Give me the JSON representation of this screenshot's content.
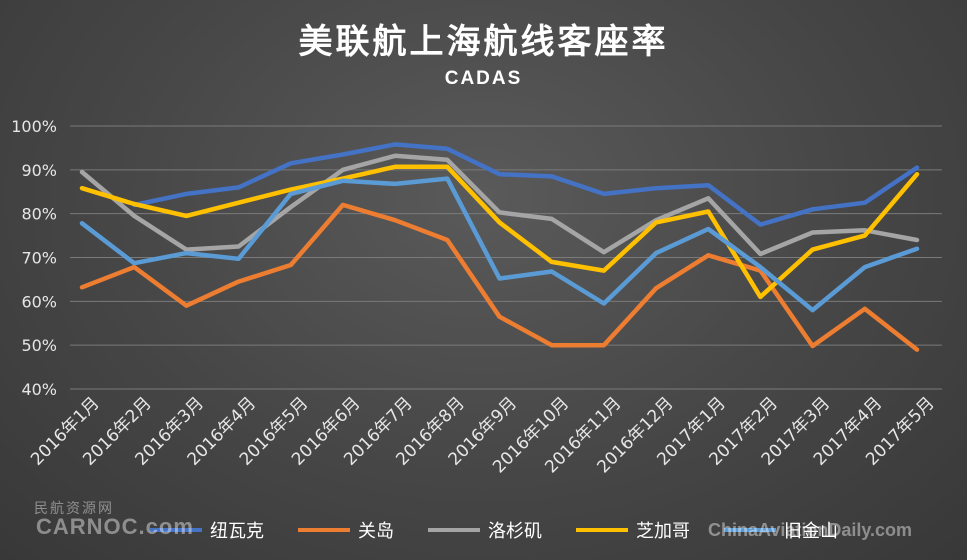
{
  "chart_data": {
    "type": "line",
    "title": "美联航上海航线客座率",
    "subtitle": "CADAS",
    "categories": [
      "2016年1月",
      "2016年2月",
      "2016年3月",
      "2016年4月",
      "2016年5月",
      "2016年6月",
      "2016年7月",
      "2016年8月",
      "2016年9月",
      "2016年10月",
      "2016年11月",
      "2016年12月",
      "2017年1月",
      "2017年2月",
      "2017年3月",
      "2017年4月",
      "2017年5月"
    ],
    "y_ticks": [
      "40%",
      "50%",
      "60%",
      "70%",
      "80%",
      "90%",
      "100%"
    ],
    "ylim": [
      40,
      100
    ],
    "grid": true,
    "legend_position": "bottom",
    "series": [
      {
        "name": "纽瓦克",
        "color": "#4472C4",
        "values": [
          null,
          82,
          84.5,
          86,
          91.5,
          93.5,
          95.8,
          94.8,
          89,
          88.5,
          84.5,
          85.8,
          86.5,
          77.5,
          81,
          82.5,
          90.5
        ]
      },
      {
        "name": "关岛",
        "color": "#ED7D31",
        "values": [
          63.2,
          67.8,
          59,
          64.5,
          68.3,
          82,
          78.5,
          74,
          56.5,
          50,
          50,
          63,
          70.5,
          67,
          49.8,
          58.3,
          49
        ]
      },
      {
        "name": "洛杉矶",
        "color": "#A5A5A5",
        "values": [
          89.5,
          79.5,
          71.8,
          72.5,
          81.5,
          90,
          93.2,
          92.3,
          80.3,
          78.8,
          71.2,
          78.5,
          83.5,
          70.8,
          75.7,
          76.2,
          74
        ]
      },
      {
        "name": "芝加哥",
        "color": "#FFC000",
        "values": [
          85.8,
          82.2,
          79.5,
          82.5,
          85.5,
          88,
          90.7,
          90.7,
          78,
          69,
          67,
          78,
          80.5,
          61,
          71.8,
          75,
          89
        ]
      },
      {
        "name": "旧金山",
        "color": "#5B9BD5",
        "values": [
          77.8,
          68.7,
          71,
          69.7,
          84.5,
          87.5,
          86.8,
          88,
          65.2,
          66.8,
          59.5,
          71,
          76.5,
          67.8,
          58,
          67.8,
          72
        ]
      }
    ]
  },
  "watermark": {
    "left_cn": "民航资源网",
    "left_en": "CARNOC.com",
    "right_en": "ChinaAviationDaily.com"
  }
}
